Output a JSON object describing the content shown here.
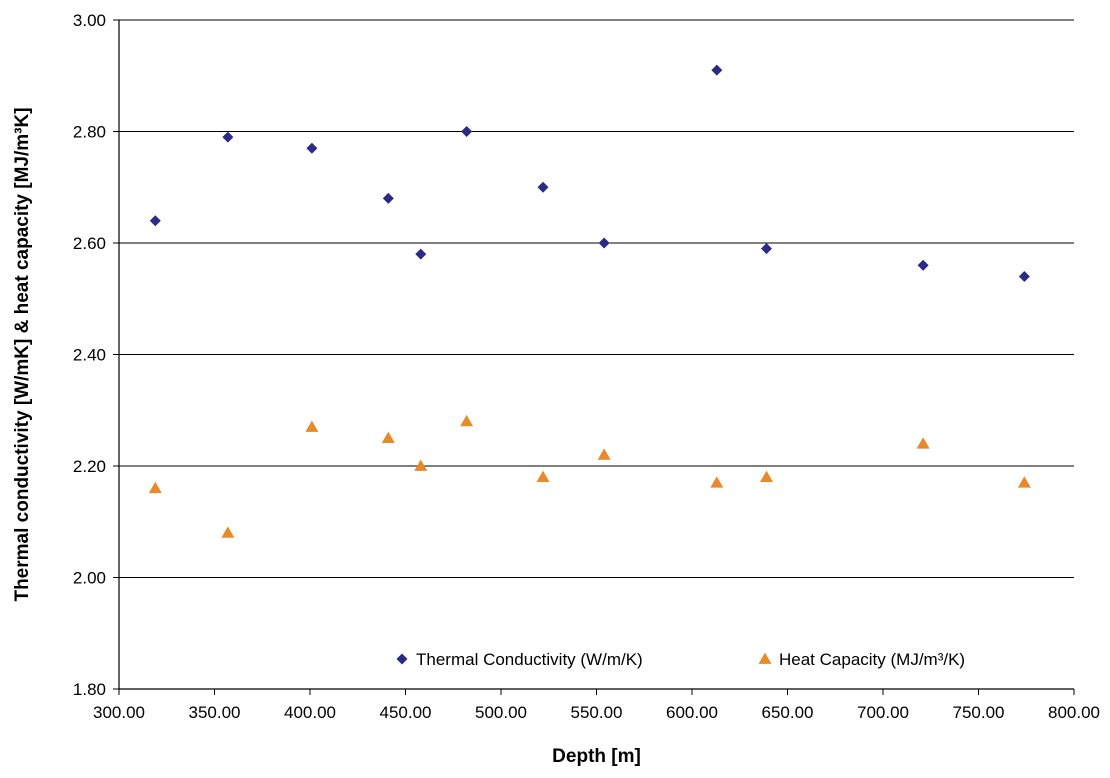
{
  "chart_data": {
    "type": "scatter",
    "title": "",
    "xlabel": "Depth [m]",
    "ylabel": "Thermal conductivity [W/mK] & heat capacity [MJ/m³K]",
    "xlim": [
      300,
      800
    ],
    "ylim": [
      1.8,
      3.0
    ],
    "x_ticks": [
      "300.00",
      "350.00",
      "400.00",
      "450.00",
      "500.00",
      "550.00",
      "600.00",
      "650.00",
      "700.00",
      "750.00",
      "800.00"
    ],
    "y_ticks": [
      "1.80",
      "2.00",
      "2.20",
      "2.40",
      "2.60",
      "2.80",
      "3.00"
    ],
    "grid": "horizontal",
    "legend_position": "bottom-right",
    "series": [
      {
        "name": "Thermal Conductivity (W/m/K)",
        "marker": "diamond",
        "color": "#2b2b86",
        "points": [
          {
            "x": 319,
            "y": 2.64
          },
          {
            "x": 357,
            "y": 2.79
          },
          {
            "x": 401,
            "y": 2.77
          },
          {
            "x": 441,
            "y": 2.68
          },
          {
            "x": 458,
            "y": 2.58
          },
          {
            "x": 482,
            "y": 2.8
          },
          {
            "x": 522,
            "y": 2.7
          },
          {
            "x": 554,
            "y": 2.6
          },
          {
            "x": 613,
            "y": 2.91
          },
          {
            "x": 639,
            "y": 2.59
          },
          {
            "x": 721,
            "y": 2.56
          },
          {
            "x": 774,
            "y": 2.54
          }
        ]
      },
      {
        "name": "Heat Capacity (MJ/m³/K)",
        "marker": "triangle",
        "color": "#e8892a",
        "points": [
          {
            "x": 319,
            "y": 2.16
          },
          {
            "x": 357,
            "y": 2.08
          },
          {
            "x": 401,
            "y": 2.27
          },
          {
            "x": 441,
            "y": 2.25
          },
          {
            "x": 458,
            "y": 2.2
          },
          {
            "x": 482,
            "y": 2.28
          },
          {
            "x": 522,
            "y": 2.18
          },
          {
            "x": 554,
            "y": 2.22
          },
          {
            "x": 613,
            "y": 2.17
          },
          {
            "x": 639,
            "y": 2.18
          },
          {
            "x": 721,
            "y": 2.24
          },
          {
            "x": 774,
            "y": 2.17
          }
        ]
      }
    ]
  }
}
